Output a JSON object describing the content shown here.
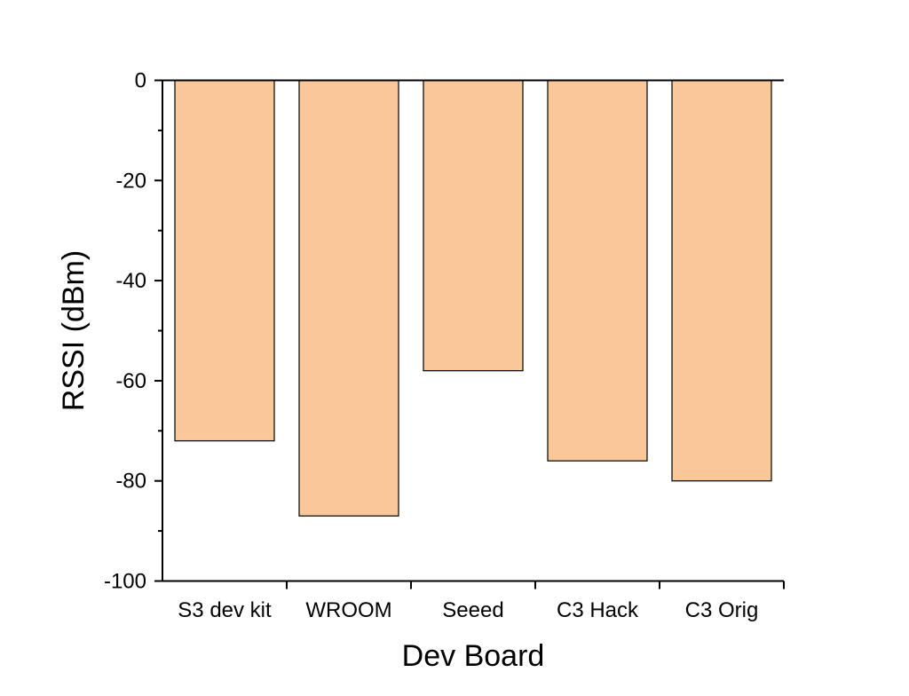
{
  "chart_data": {
    "type": "bar",
    "categories": [
      "S3 dev kit",
      "WROOM",
      "Seeed",
      "C3 Hack",
      "C3 Orig"
    ],
    "values": [
      -72,
      -87,
      -58,
      -76,
      -80
    ],
    "xlabel": "Dev Board",
    "ylabel": "RSSI (dBm)",
    "ylim": [
      -100,
      0
    ],
    "yticks": [
      0,
      -20,
      -40,
      -60,
      -80,
      -100
    ],
    "ytick_labels": [
      "0",
      "-20",
      "-40",
      "-60",
      "-80",
      "-100"
    ],
    "grid": false,
    "legend": "none",
    "bar_color": "#FAC898",
    "bar_edge_color": "#000000"
  }
}
